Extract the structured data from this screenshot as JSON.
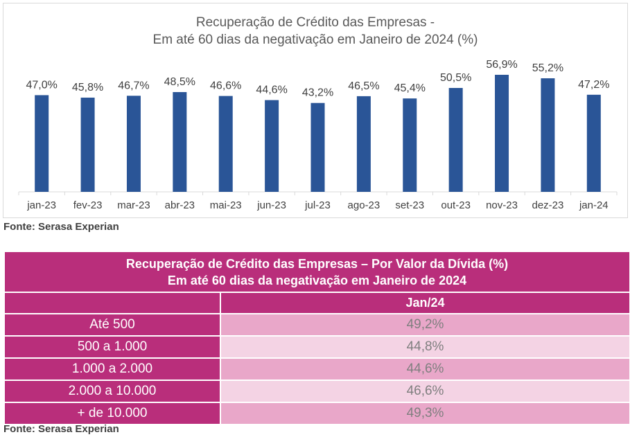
{
  "chart": {
    "title_line1": "Recuperação de Crédito das Empresas -",
    "title_line2": "Em até 60 dias da negativação em Janeiro de 2024 (%)"
  },
  "chart_data": {
    "type": "bar",
    "title": "Recuperação de Crédito das Empresas - Em até 60 dias da negativação em Janeiro de 2024 (%)",
    "categories": [
      "jan-23",
      "fev-23",
      "mar-23",
      "abr-23",
      "mai-23",
      "jun-23",
      "jul-23",
      "ago-23",
      "set-23",
      "out-23",
      "nov-23",
      "dez-23",
      "jan-24"
    ],
    "values": [
      47.0,
      45.8,
      46.7,
      48.5,
      46.6,
      44.6,
      43.2,
      46.5,
      45.4,
      50.5,
      56.9,
      55.2,
      47.2
    ],
    "value_labels": [
      "47,0%",
      "45,8%",
      "46,7%",
      "48,5%",
      "46,6%",
      "44,6%",
      "43,2%",
      "46,5%",
      "45,4%",
      "50,5%",
      "56,9%",
      "55,2%",
      "47,2%"
    ],
    "xlabel": "",
    "ylabel": "",
    "ylim": [
      0,
      60
    ],
    "grid": false,
    "bar_color": "#2a5597"
  },
  "source1": "Fonte: Serasa Experian",
  "table": {
    "title_line1": "Recuperação de Crédito das Empresas – Por Valor da Dívida (%)",
    "title_line2": "Em até 60 dias da negativação em Janeiro de 2024",
    "column_header": "Jan/24",
    "rows": [
      {
        "label": "Até 500",
        "value": "49,2%"
      },
      {
        "label": "500 a 1.000",
        "value": "44,8%"
      },
      {
        "label": "1.000 a 2.000",
        "value": "44,6%"
      },
      {
        "label": "2.000 a 10.000",
        "value": "46,6%"
      },
      {
        "label": "+ de 10.000",
        "value": "49,3%"
      }
    ]
  },
  "source2": "Fonte: Serasa Experian"
}
